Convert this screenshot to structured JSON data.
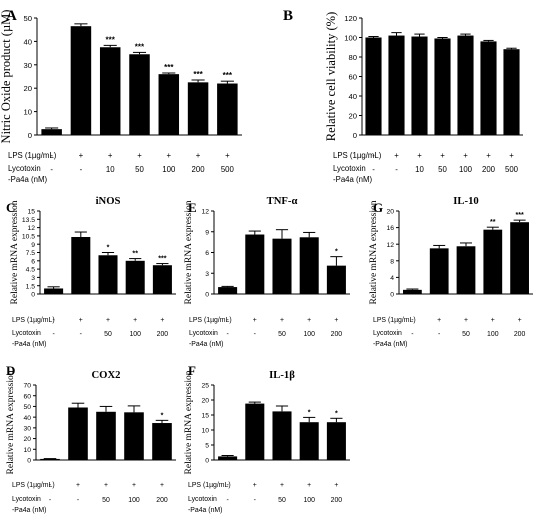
{
  "chart_data": [
    {
      "id": "A",
      "type": "bar",
      "panel_letter": "A",
      "title": "",
      "ylabel": "Nitric Oxide product (µM)",
      "ylim": [
        0,
        50
      ],
      "yticks": [
        0,
        10,
        20,
        30,
        40,
        50
      ],
      "values": [
        2.5,
        46.5,
        37.5,
        34.5,
        26.0,
        22.5,
        22.0
      ],
      "errors": [
        0.5,
        1.0,
        0.8,
        0.8,
        0.5,
        1.0,
        1.0
      ],
      "significance": [
        "",
        "",
        "***",
        "***",
        "***",
        "***",
        "***"
      ],
      "conditions": {
        "row1_label": "LPS (1µg/mL)",
        "row1": [
          "-",
          "+",
          "+",
          "+",
          "+",
          "+",
          "+"
        ],
        "row2_label": "Lycotoxin",
        "row3_label": "-Pa4a (nM)",
        "row3": [
          "-",
          "-",
          "10",
          "50",
          "100",
          "200",
          "500"
        ]
      }
    },
    {
      "id": "B",
      "type": "bar",
      "panel_letter": "B",
      "title": "",
      "ylabel": "Relative cell viability (%)",
      "ylim": [
        0,
        120
      ],
      "yticks": [
        0,
        20,
        40,
        60,
        80,
        100,
        120
      ],
      "values": [
        100,
        102,
        101,
        99,
        102,
        96,
        88
      ],
      "errors": [
        1,
        3,
        2.5,
        1,
        1.5,
        1,
        1
      ],
      "significance": [
        "",
        "",
        "",
        "",
        "",
        "",
        ""
      ],
      "conditions": {
        "row1_label": "LPS (1µg/mL)",
        "row1": [
          "-",
          "+",
          "+",
          "+",
          "+",
          "+",
          "+"
        ],
        "row2_label": "Lycotoxin",
        "row3_label": "-Pa4a (nM)",
        "row3": [
          "-",
          "-",
          "10",
          "50",
          "100",
          "200",
          "500"
        ]
      }
    },
    {
      "id": "C",
      "type": "bar",
      "panel_letter": "C",
      "title": "iNOS",
      "ylabel": "Relative mRNA expression",
      "ylim": [
        0,
        15
      ],
      "yticks": [
        0,
        1.5,
        3,
        4.5,
        6,
        7.5,
        9,
        10.5,
        12,
        13.5,
        15
      ],
      "ytick_labels": [
        "0",
        "1.5",
        "3",
        "4.5",
        "6",
        "7.5",
        "9",
        "10.5",
        "12",
        "13.5",
        "15"
      ],
      "values": [
        1.0,
        10.3,
        7.0,
        6.0,
        5.2
      ],
      "errors": [
        0.3,
        0.9,
        0.5,
        0.4,
        0.3
      ],
      "significance": [
        "",
        "",
        "*",
        "**",
        "***"
      ],
      "conditions": {
        "row1_label": "LPS (1µg/mL)",
        "row1": [
          "-",
          "+",
          "+",
          "+",
          "+"
        ],
        "row2_label": "Lycotoxin",
        "row3_label": "-Pa4a (nM)",
        "row3": [
          "-",
          "-",
          "50",
          "100",
          "200"
        ]
      }
    },
    {
      "id": "E",
      "type": "bar",
      "panel_letter": "E",
      "title": "TNF-α",
      "ylabel": "Relative mRNA expression",
      "ylim": [
        0,
        12
      ],
      "yticks": [
        0,
        3,
        6,
        9,
        12
      ],
      "values": [
        1.0,
        8.6,
        8.0,
        8.2,
        4.1
      ],
      "errors": [
        0.1,
        0.5,
        1.3,
        0.7,
        1.3
      ],
      "significance": [
        "",
        "",
        "",
        "",
        "*"
      ],
      "conditions": {
        "row1_label": "LPS (1µg/mL)",
        "row1": [
          "-",
          "+",
          "+",
          "+",
          "+"
        ],
        "row2_label": "Lycotoxin",
        "row3_label": "-Pa4a (nM)",
        "row3": [
          "-",
          "-",
          "50",
          "100",
          "200"
        ]
      }
    },
    {
      "id": "G",
      "type": "bar",
      "panel_letter": "G",
      "title": "IL-10",
      "ylabel": "Relative mRNA expression",
      "ylim": [
        0,
        20
      ],
      "yticks": [
        0,
        4,
        8,
        12,
        16,
        20
      ],
      "values": [
        1.0,
        11.0,
        11.5,
        15.5,
        17.3
      ],
      "errors": [
        0.2,
        0.7,
        0.8,
        0.6,
        0.5
      ],
      "significance": [
        "",
        "",
        "",
        "**",
        "***"
      ],
      "conditions": {
        "row1_label": "LPS (1µg/mL)",
        "row1": [
          "-",
          "+",
          "+",
          "+",
          "+"
        ],
        "row2_label": "Lycotoxin",
        "row3_label": "-Pa4a (nM)",
        "row3": [
          "-",
          "-",
          "50",
          "100",
          "200"
        ]
      }
    },
    {
      "id": "D",
      "type": "bar",
      "panel_letter": "D",
      "title": "COX2",
      "ylabel": "Relative mRNA expression",
      "ylim": [
        0,
        70
      ],
      "yticks": [
        0,
        10,
        20,
        30,
        40,
        50,
        60,
        70
      ],
      "values": [
        1.0,
        49.0,
        45.0,
        44.5,
        34.5
      ],
      "errors": [
        0.3,
        4.0,
        5.0,
        6.0,
        2.5
      ],
      "significance": [
        "",
        "",
        "",
        "",
        "*"
      ],
      "conditions": {
        "row1_label": "LPS (1µg/mL)",
        "row1": [
          "-",
          "+",
          "+",
          "+",
          "+"
        ],
        "row2_label": "Lycotoxin",
        "row3_label": "-Pa4a (nM)",
        "row3": [
          "-",
          "-",
          "50",
          "100",
          "200"
        ]
      }
    },
    {
      "id": "F",
      "type": "bar",
      "panel_letter": "F",
      "title": "IL-1β",
      "ylabel": "Relative mRNA expression",
      "ylim": [
        0,
        25
      ],
      "yticks": [
        0,
        5,
        10,
        15,
        20,
        25
      ],
      "values": [
        1.2,
        18.8,
        16.2,
        12.6,
        12.6
      ],
      "errors": [
        0.3,
        0.5,
        1.8,
        1.6,
        1.3
      ],
      "significance": [
        "",
        "",
        "",
        "*",
        "*"
      ],
      "conditions": {
        "row1_label": "LPS (1µg/mL)",
        "row1": [
          "-",
          "+",
          "+",
          "+",
          "+"
        ],
        "row2_label": "Lycotoxin",
        "row3_label": "-Pa4a (nM)",
        "row3": [
          "-",
          "-",
          "50",
          "100",
          "200"
        ]
      }
    }
  ],
  "style": {
    "bar_color": "#000000",
    "axis_color": "#000000"
  }
}
